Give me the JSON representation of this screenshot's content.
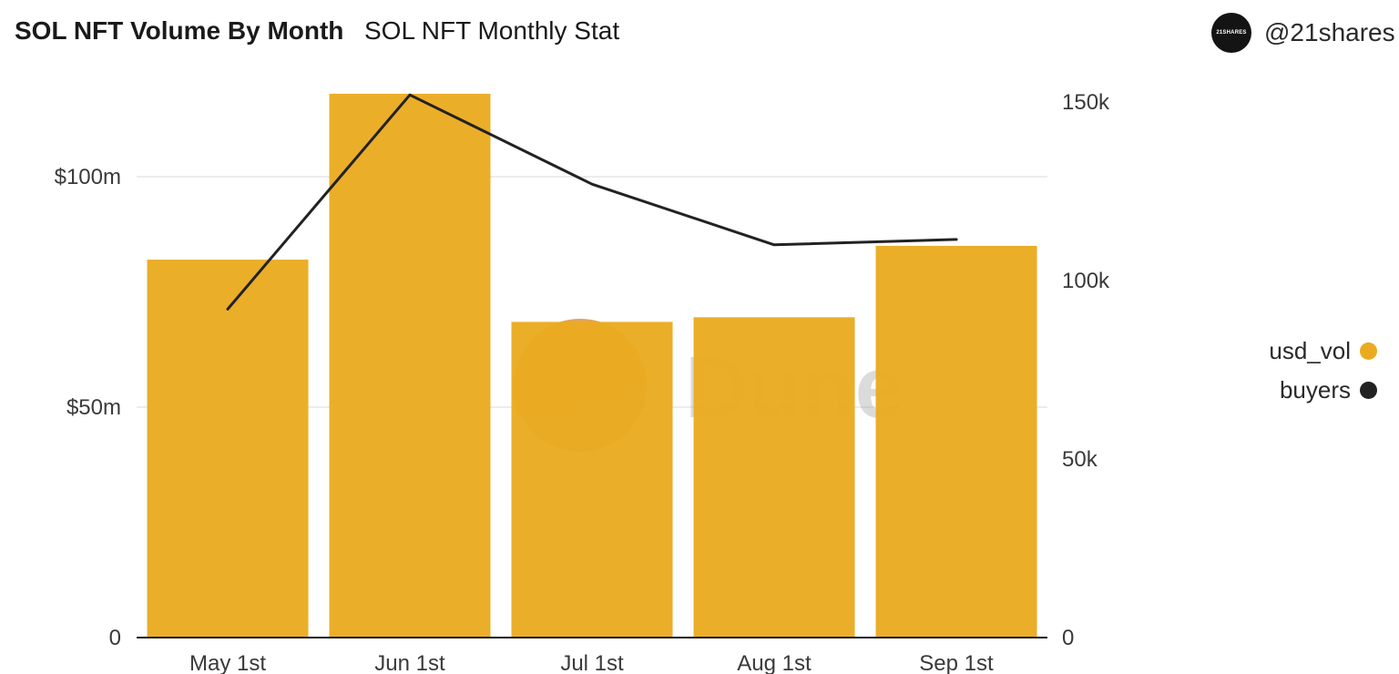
{
  "header": {
    "title": "SOL NFT Volume By Month",
    "subtitle": "SOL NFT Monthly Stat"
  },
  "author": {
    "avatar_text": "21SHARES",
    "handle": "@21shares"
  },
  "watermark": {
    "text": "Dune"
  },
  "colors": {
    "usd_vol": "#eaab20",
    "buyers": "#222222",
    "grid": "#e6e6e6",
    "axis": "#1a1a1a"
  },
  "legend": [
    {
      "label": "usd_vol",
      "color": "#eaab20"
    },
    {
      "label": "buyers",
      "color": "#222222"
    }
  ],
  "chart_data": {
    "type": "bar",
    "title": "SOL NFT Volume By Month",
    "categories": [
      "May 1st",
      "Jun 1st",
      "Jul 1st",
      "Aug 1st",
      "Sep 1st"
    ],
    "series": [
      {
        "name": "usd_vol",
        "type": "bar",
        "axis": "left",
        "values": [
          82000000,
          118000000,
          68500000,
          69500000,
          85000000
        ]
      },
      {
        "name": "buyers",
        "type": "line",
        "axis": "right",
        "values": [
          92000,
          152000,
          127000,
          110000,
          111500
        ]
      }
    ],
    "y_left": {
      "range": [
        0,
        120000000
      ],
      "ticks": [
        0,
        50000000,
        100000000
      ],
      "tick_labels": [
        "0",
        "$50m",
        "$100m"
      ]
    },
    "y_right": {
      "range": [
        0,
        155000
      ],
      "ticks": [
        0,
        50000,
        100000,
        150000
      ],
      "tick_labels": [
        "0",
        "50k",
        "100k",
        "150k"
      ]
    },
    "grid": true,
    "legend_position": "right"
  }
}
